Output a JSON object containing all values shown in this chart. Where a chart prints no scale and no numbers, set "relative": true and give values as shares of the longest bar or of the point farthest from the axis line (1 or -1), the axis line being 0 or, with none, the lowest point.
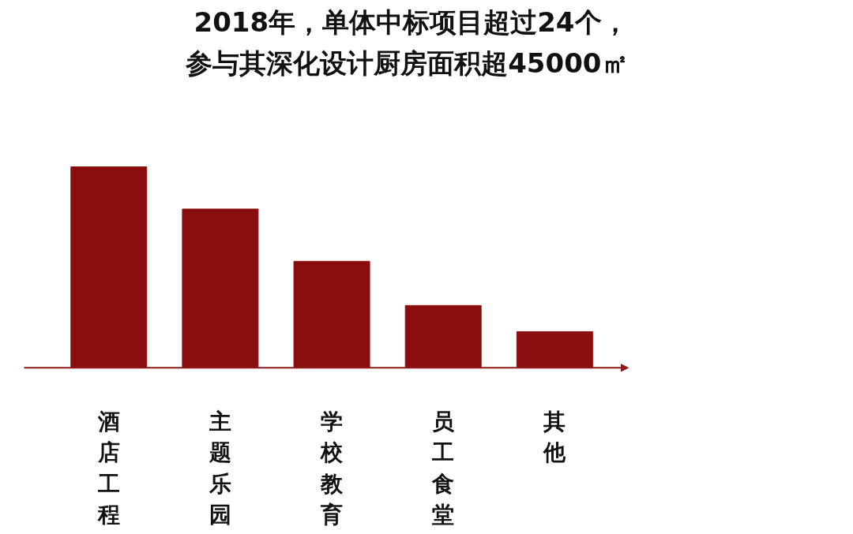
{
  "chart_data": {
    "type": "bar",
    "title": "2018年，单体中标项目超过24个，",
    "subtitle": "参与其深化设计厨房面积超45000㎡",
    "categories": [
      "酒店工程",
      "主题乐园",
      "学校教育",
      "员工食堂",
      "其他"
    ],
    "values": [
      1,
      0.79,
      0.53,
      0.31,
      0.18
    ],
    "color": "#8b0e0e",
    "relative": true,
    "grid": false
  }
}
